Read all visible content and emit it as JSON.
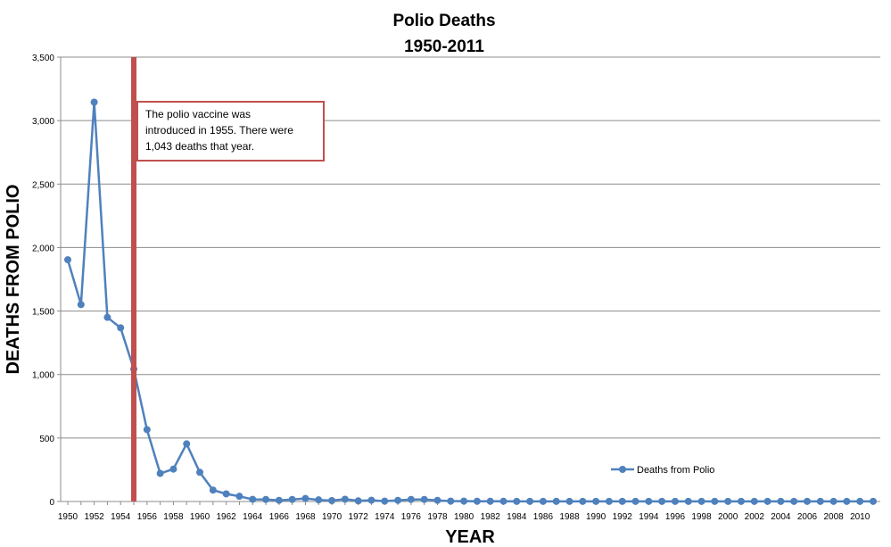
{
  "chart_data": {
    "type": "line",
    "title": "Polio Deaths",
    "subtitle": "1950-2011",
    "xlabel": "YEAR",
    "ylabel": "DEATHS FROM POLIO",
    "ylim": [
      0,
      3500
    ],
    "xlim": [
      1950,
      2011
    ],
    "yticks": [
      0,
      500,
      1000,
      1500,
      2000,
      2500,
      3000,
      3500
    ],
    "ytick_labels": [
      "0",
      "500",
      "1,000",
      "1,500",
      "2,000",
      "2,500",
      "3,000",
      "3,500"
    ],
    "xtick_labels": [
      "1950",
      "1952",
      "1954",
      "1956",
      "1958",
      "1960",
      "1962",
      "1964",
      "1966",
      "1968",
      "1970",
      "1972",
      "1974",
      "1976",
      "1978",
      "1980",
      "1982",
      "1984",
      "1986",
      "1988",
      "1990",
      "1992",
      "1994",
      "1996",
      "1998",
      "2000",
      "2002",
      "2004",
      "2006",
      "2008",
      "2010"
    ],
    "grid": true,
    "legend": {
      "placement": "right",
      "entries": [
        "Deaths from Polio"
      ]
    },
    "series": [
      {
        "name": "Deaths from Polio",
        "color": "#4f81bd",
        "x": [
          1950,
          1951,
          1952,
          1953,
          1954,
          1955,
          1956,
          1957,
          1958,
          1959,
          1960,
          1961,
          1962,
          1963,
          1964,
          1965,
          1966,
          1967,
          1968,
          1969,
          1970,
          1971,
          1972,
          1973,
          1974,
          1975,
          1976,
          1977,
          1978,
          1979,
          1980,
          1981,
          1982,
          1983,
          1984,
          1985,
          1986,
          1987,
          1988,
          1989,
          1990,
          1991,
          1992,
          1993,
          1994,
          1995,
          1996,
          1997,
          1998,
          1999,
          2000,
          2001,
          2002,
          2003,
          2004,
          2005,
          2006,
          2007,
          2008,
          2009,
          2010,
          2011
        ],
        "values": [
          1904,
          1551,
          3145,
          1450,
          1368,
          1043,
          566,
          221,
          255,
          454,
          230,
          90,
          60,
          41,
          17,
          16,
          9,
          16,
          24,
          13,
          7,
          18,
          5,
          10,
          3,
          9,
          16,
          16,
          9,
          3,
          3,
          2,
          2,
          2,
          1,
          1,
          1,
          1,
          1,
          1,
          1,
          1,
          1,
          1,
          1,
          1,
          1,
          1,
          1,
          1,
          1,
          1,
          1,
          1,
          1,
          1,
          1,
          1,
          1,
          1,
          1,
          1
        ]
      }
    ],
    "marker_line": {
      "year": 1955,
      "color": "#c0504d"
    },
    "annotation": {
      "lines": [
        "The polio vaccine was",
        "introduced in 1955.  There were",
        "1,043  deaths that year."
      ],
      "border_color": "#c0504d"
    }
  }
}
